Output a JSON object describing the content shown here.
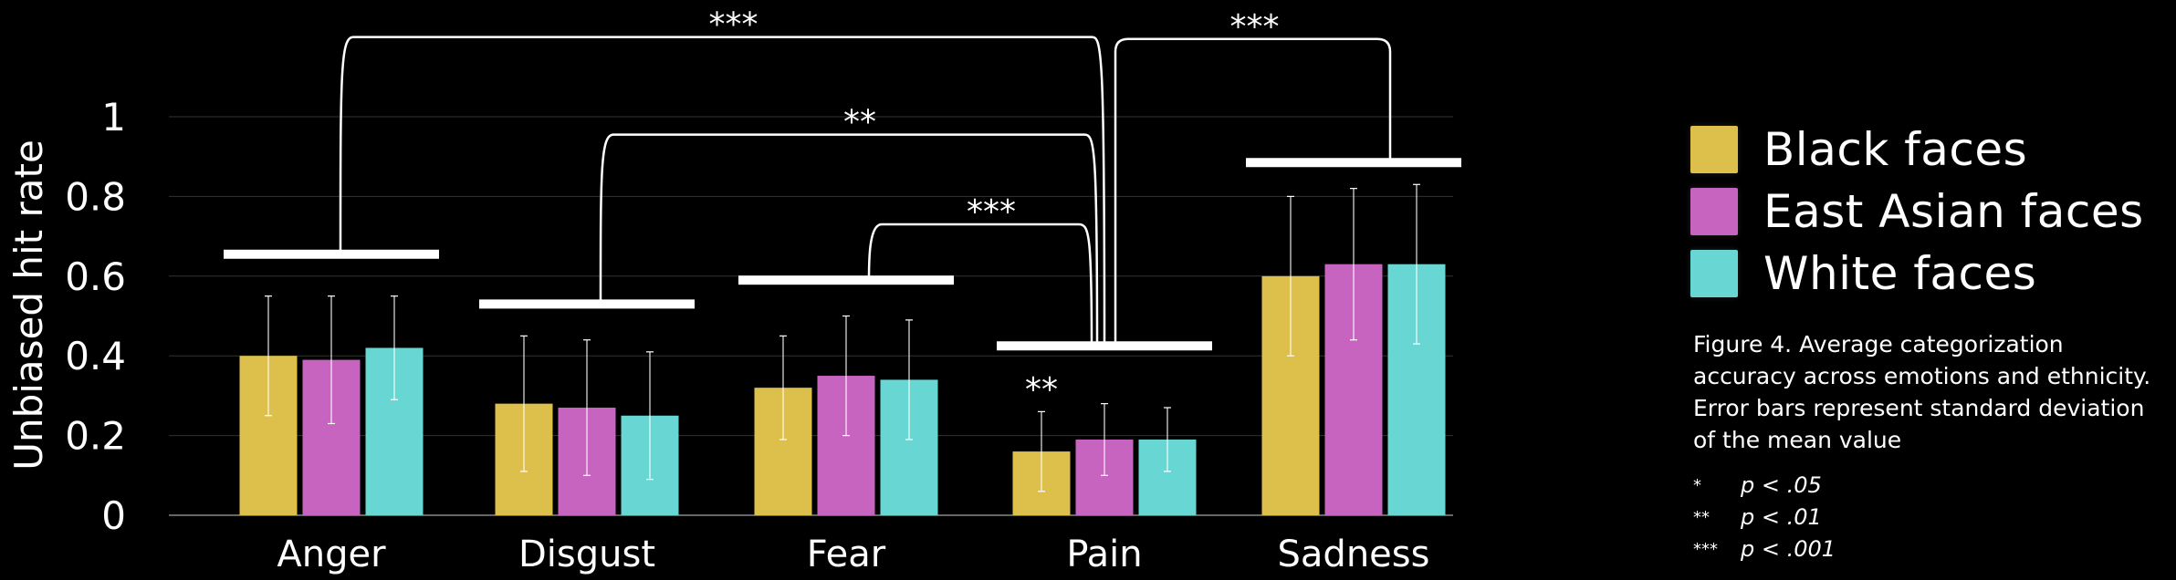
{
  "chart_data": {
    "type": "bar",
    "categories": [
      "Anger",
      "Disgust",
      "Fear",
      "Pain",
      "Sadness"
    ],
    "ylabel": "Unbiased hit rate",
    "ylim": [
      0,
      1.05
    ],
    "yticks": [
      {
        "value": 0,
        "label": "0"
      },
      {
        "value": 0.2,
        "label": "0.2"
      },
      {
        "value": 0.4,
        "label": "0.4"
      },
      {
        "value": 0.6,
        "label": "0.6"
      },
      {
        "value": 0.8,
        "label": "0.8"
      },
      {
        "value": 1,
        "label": "1"
      }
    ],
    "grid": true,
    "legend_position": "right",
    "series": [
      {
        "name": "Black faces",
        "color": "#DDBF4C",
        "values": [
          0.4,
          0.28,
          0.32,
          0.16,
          0.6
        ],
        "sd": [
          0.15,
          0.17,
          0.13,
          0.1,
          0.2
        ]
      },
      {
        "name": "East Asian faces",
        "color": "#C764C0",
        "values": [
          0.39,
          0.27,
          0.35,
          0.19,
          0.63
        ],
        "sd": [
          0.16,
          0.17,
          0.15,
          0.09,
          0.19
        ]
      },
      {
        "name": "White faces",
        "color": "#68D6D2",
        "values": [
          0.42,
          0.25,
          0.34,
          0.19,
          0.63
        ],
        "sd": [
          0.13,
          0.16,
          0.15,
          0.08,
          0.2
        ]
      }
    ],
    "group_bars": [
      {
        "category": "Anger",
        "value": 0.655
      },
      {
        "category": "Disgust",
        "value": 0.53
      },
      {
        "category": "Fear",
        "value": 0.59
      },
      {
        "category": "Pain",
        "value": 0.425
      },
      {
        "category": "Sadness",
        "value": 0.885
      }
    ],
    "brackets": [
      {
        "from": "Anger",
        "to": "Pain",
        "level": 1.2,
        "label": "***"
      },
      {
        "from": "Disgust",
        "to": "Pain",
        "level": 0.955,
        "label": "**"
      },
      {
        "from": "Fear",
        "to": "Pain",
        "level": 0.73,
        "label": "***"
      },
      {
        "from": "Pain",
        "to": "Sadness",
        "level": 1.195,
        "label": "***"
      }
    ],
    "annotations": [
      {
        "category": "Pain",
        "series": "Black faces",
        "value": 0.32,
        "label": "**"
      }
    ]
  },
  "caption": "Figure 4. Average categorization accuracy across emotions and ethnicity. Error bars represent standard deviation of the mean value",
  "pvalues": [
    {
      "stars": "*",
      "text": "p < .05"
    },
    {
      "stars": "**",
      "text": "p < .01"
    },
    {
      "stars": "***",
      "text": "p < .001"
    }
  ]
}
